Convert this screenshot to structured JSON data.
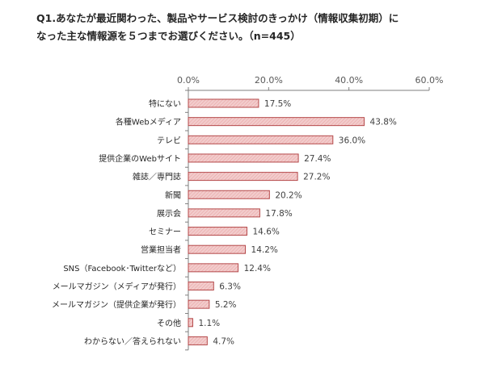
{
  "title_line1": "Q1.あなたが最近関わった、製品やサービス検討のきっかけ（情報収集初期）に",
  "title_line2": "なった主な情報源を５つまでお選びください。（n=445）",
  "chart_data": {
    "type": "bar",
    "orientation": "horizontal",
    "categories": [
      "特にない",
      "各種Webメディア",
      "テレビ",
      "提供企業のWebサイト",
      "雑誌／専門誌",
      "新聞",
      "展示会",
      "セミナー",
      "営業担当者",
      "SNS（Facebook･Twitterなど）",
      "メールマガジン（メディアが発行）",
      "メールマガジン（提供企業が発行）",
      "その他",
      "わからない／答えられない"
    ],
    "values": [
      17.5,
      43.8,
      36.0,
      27.4,
      27.2,
      20.2,
      17.8,
      14.6,
      14.2,
      12.4,
      6.3,
      5.2,
      1.1,
      4.7
    ],
    "value_labels": [
      "17.5%",
      "43.8%",
      "36.0%",
      "27.4%",
      "27.2%",
      "20.2%",
      "17.8%",
      "14.6%",
      "14.2%",
      "12.4%",
      "6.3%",
      "5.2%",
      "1.1%",
      "4.7%"
    ],
    "xlim": [
      0,
      60
    ],
    "ticks": [
      0,
      20,
      40,
      60
    ],
    "tick_labels": [
      "0.0%",
      "20.0%",
      "40.0%",
      "60.0%"
    ],
    "grid": false,
    "bar_fill": "#f2cccc",
    "bar_hatch": "#e8a0a0",
    "bar_stroke": "#b5494a",
    "axis_color": "#7f7f7f"
  }
}
